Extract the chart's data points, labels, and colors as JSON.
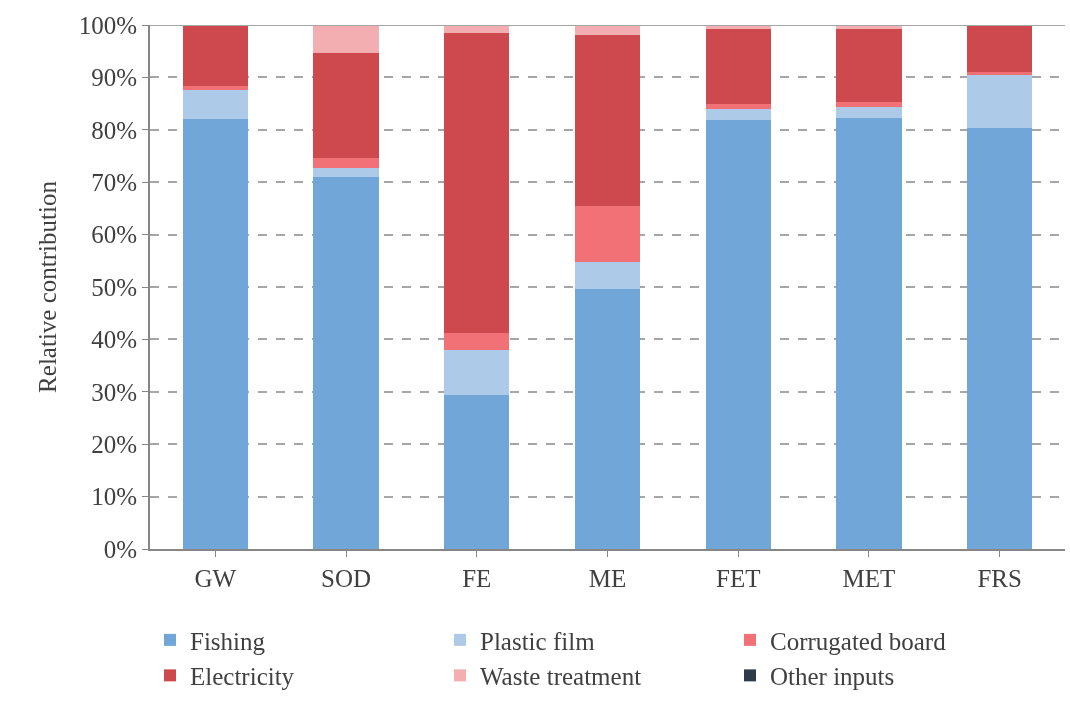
{
  "chart_data": {
    "type": "bar",
    "stacked": true,
    "ylabel": "Relative contribution",
    "categories": [
      "GW",
      "SOD",
      "FE",
      "ME",
      "FET",
      "MET",
      "FRS"
    ],
    "series": [
      {
        "name": "Fishing",
        "color": "#70a6d8",
        "values": [
          82.1,
          71.0,
          29.4,
          49.7,
          81.9,
          82.3,
          80.4
        ]
      },
      {
        "name": "Plastic film",
        "color": "#adcbe9",
        "values": [
          5.5,
          1.7,
          8.6,
          5.1,
          2.0,
          2.0,
          10.1
        ]
      },
      {
        "name": "Corrugated board",
        "color": "#f27177",
        "values": [
          0.7,
          2.0,
          3.2,
          10.7,
          1.0,
          1.0,
          0.5
        ]
      },
      {
        "name": "Electricity",
        "color": "#cd494d",
        "values": [
          11.6,
          19.9,
          57.2,
          32.6,
          14.3,
          13.9,
          9.0
        ]
      },
      {
        "name": "Waste treatment",
        "color": "#f2aeb0",
        "values": [
          null,
          5.4,
          1.6,
          1.9,
          0.8,
          0.8,
          0
        ]
      },
      {
        "name": "Other inputs",
        "color": "#2d3a4a",
        "values": [
          0,
          0,
          0,
          0,
          0,
          0,
          0
        ]
      }
    ],
    "ylim": [
      0,
      100
    ],
    "yticks": [
      {
        "value": 0,
        "label": "0%"
      },
      {
        "value": 10,
        "label": "10%"
      },
      {
        "value": 20,
        "label": "20%"
      },
      {
        "value": 30,
        "label": "30%"
      },
      {
        "value": 40,
        "label": "40%"
      },
      {
        "value": 50,
        "label": "50%"
      },
      {
        "value": 60,
        "label": "60%"
      },
      {
        "value": 70,
        "label": "70%"
      },
      {
        "value": 80,
        "label": "80%"
      },
      {
        "value": 90,
        "label": "90%"
      },
      {
        "value": 100,
        "label": "100%"
      }
    ],
    "grid": "y",
    "legend": "bottom"
  }
}
